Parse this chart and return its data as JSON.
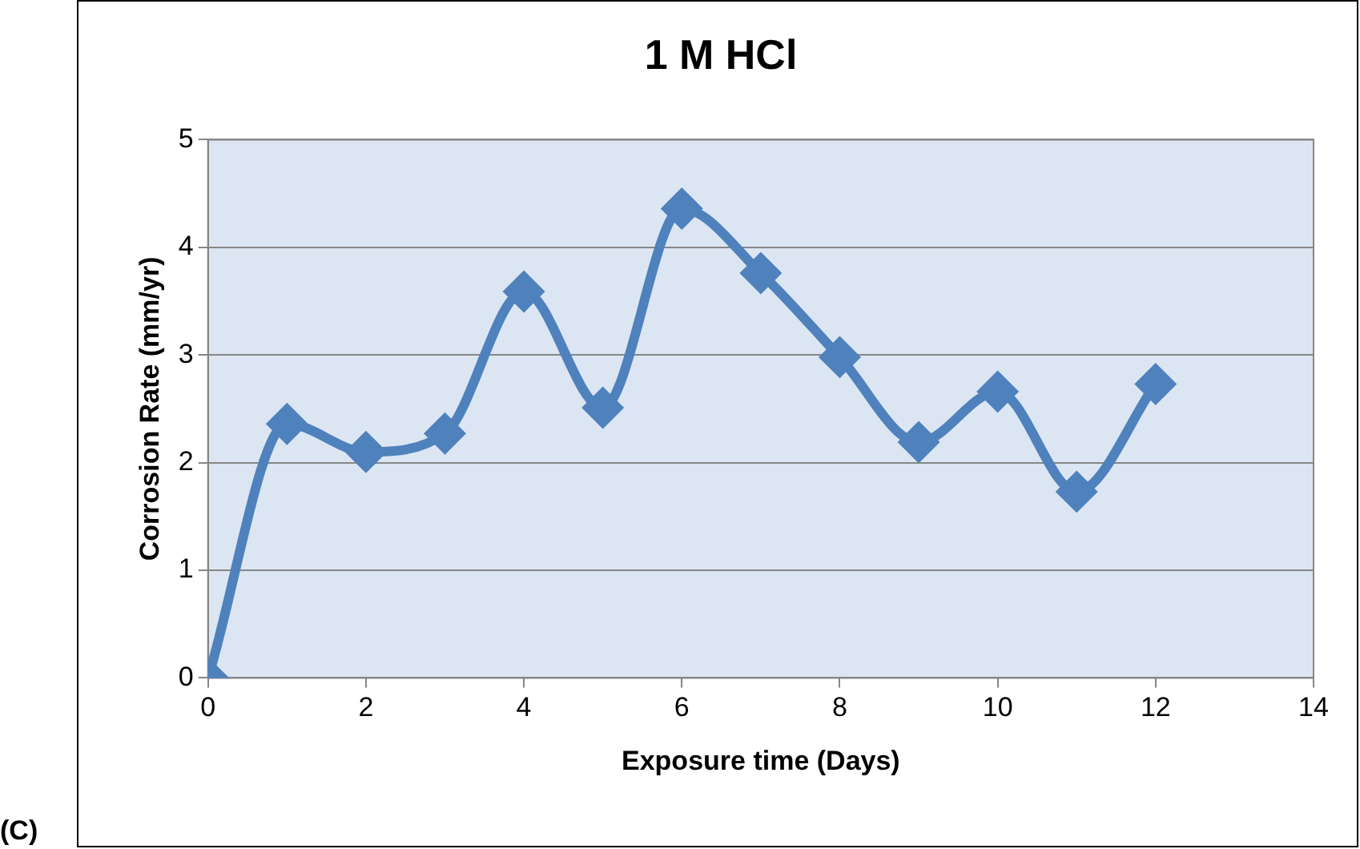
{
  "chart_data": {
    "type": "line",
    "title": "1 M HCl",
    "xlabel": "Exposure time (Days)",
    "ylabel": "Corrosion Rate (mm/yr)",
    "annotations": [
      "(C)"
    ],
    "x": [
      0,
      1,
      2,
      3,
      4,
      5,
      6,
      7,
      8,
      9,
      10,
      11,
      12
    ],
    "series": [
      {
        "color": "#4f81bd",
        "values": [
          0,
          2.36,
          2.1,
          2.27,
          3.59,
          2.51,
          4.36,
          3.76,
          2.98,
          2.19,
          2.66,
          1.73,
          2.73
        ]
      }
    ],
    "xlim": [
      0,
      14
    ],
    "xticks": [
      0,
      2,
      4,
      6,
      8,
      10,
      12,
      14
    ],
    "ylim": [
      0,
      5
    ],
    "yticks": [
      0,
      1,
      2,
      3,
      4,
      5
    ],
    "grid": "y",
    "legend": false,
    "marker": "diamond",
    "line_style": "solid"
  }
}
